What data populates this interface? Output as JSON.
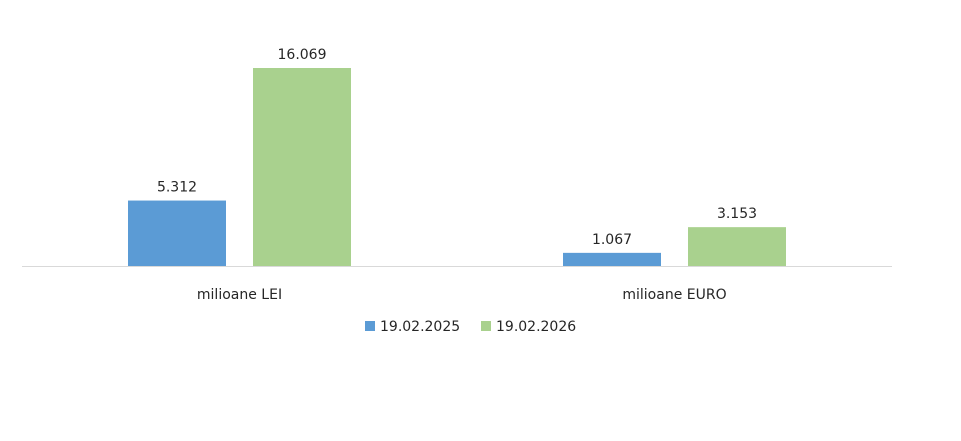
{
  "chart_data": {
    "type": "bar",
    "title": "",
    "xlabel": "",
    "ylabel": "",
    "categories": [
      "milioane LEI",
      "milioane EURO"
    ],
    "series": [
      {
        "name": "19.02.2025",
        "color": "#5b9bd5",
        "values": [
          5.312,
          1.067
        ],
        "labels": [
          "5.312",
          "1.067"
        ]
      },
      {
        "name": "19.02.2026",
        "color": "#a9d18e",
        "values": [
          16.069,
          3.153
        ],
        "labels": [
          "16.069",
          "3.153"
        ]
      }
    ],
    "ylim": [
      0,
      16.069
    ],
    "grid": false,
    "legend": "bottom",
    "axis_color": "#d9d9d9"
  }
}
